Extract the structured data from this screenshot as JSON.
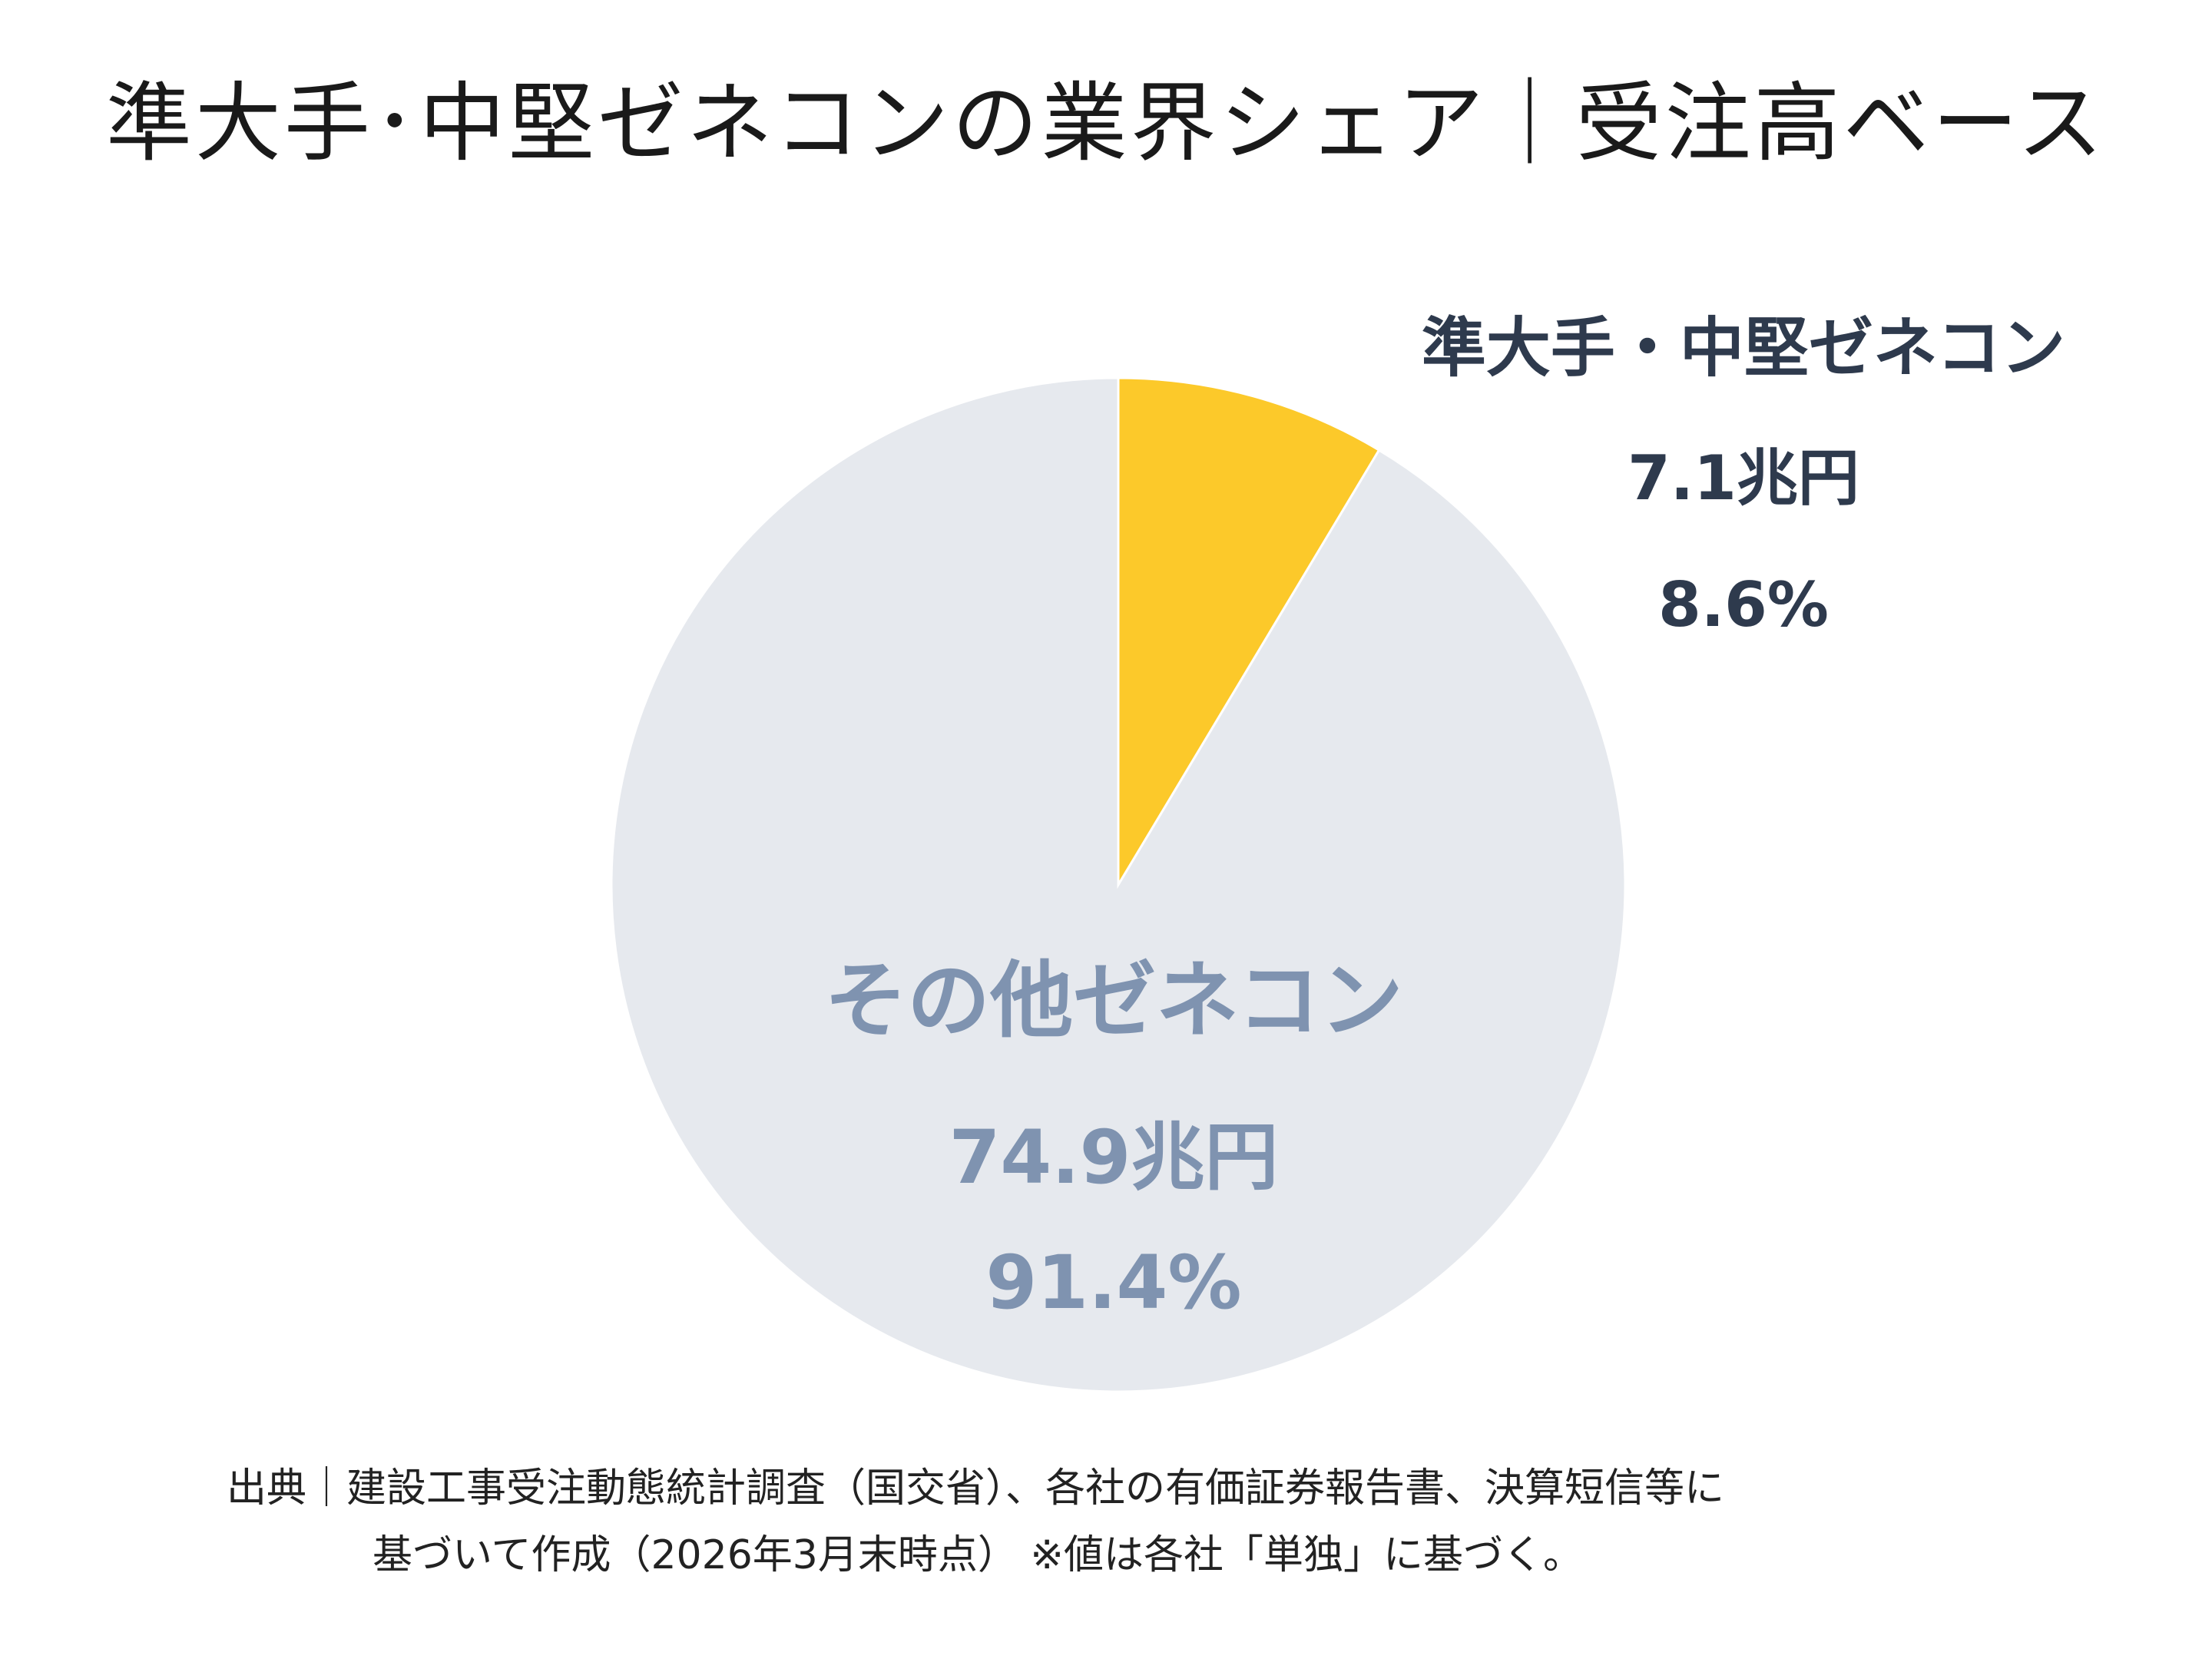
{
  "title": "準大手･中堅ゼネコンの業界シェア｜受注高ベース",
  "chart_data": {
    "type": "pie",
    "title": "準大手･中堅ゼネコンの業界シェア｜受注高ベース",
    "start_angle_deg": 0,
    "direction": "clockwise",
    "slices": [
      {
        "label": "準大手・中堅ゼネコン",
        "amount": "7.1兆円",
        "percent_label": "8.6%",
        "value": 8.6,
        "color": "#fcc92a",
        "label_color": "#2e3a4d"
      },
      {
        "label": "その他ゼネコン",
        "amount": "74.9兆円",
        "percent_label": "91.4%",
        "value": 91.4,
        "color": "#e6e9ee",
        "label_color": "#7f93b0"
      }
    ]
  },
  "source": {
    "line1": "出典｜建設工事受注動態統計調査（国交省）、各社の有価証券報告書、決算短信等に",
    "line2": "基づいて作成（2026年3月末時点） ※値は各社「単独」に基づく。"
  }
}
